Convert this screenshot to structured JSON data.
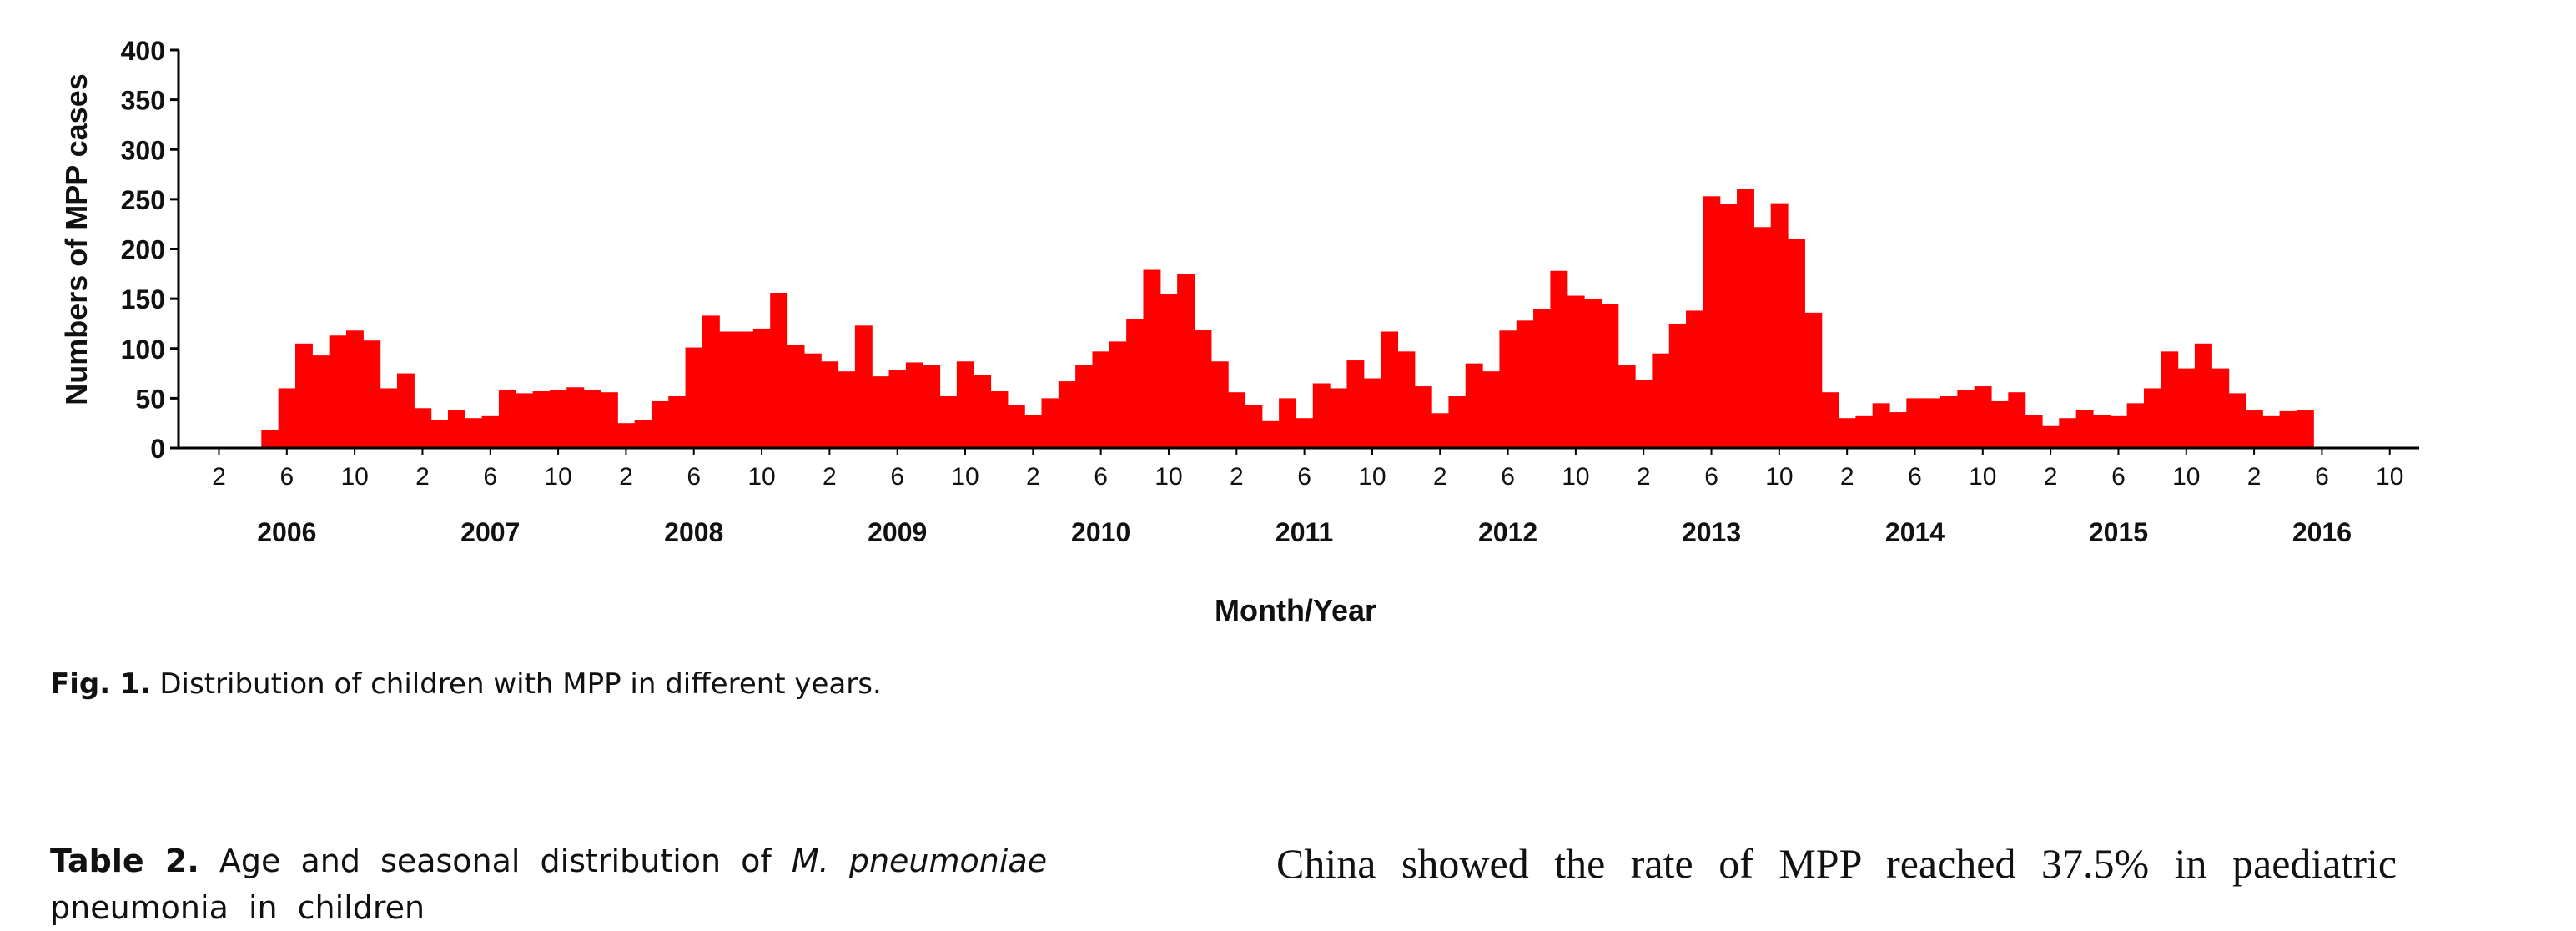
{
  "chart_data": {
    "type": "bar",
    "ylabel": "Numbers of MPP cases",
    "xlabel": "Month/Year",
    "ylim": [
      0,
      400
    ],
    "yticks": [
      0,
      50,
      100,
      150,
      200,
      250,
      300,
      350,
      400
    ],
    "month_tick_labels": [
      "2",
      "6",
      "10"
    ],
    "years": [
      "2006",
      "2007",
      "2008",
      "2009",
      "2010",
      "2011",
      "2012",
      "2013",
      "2014",
      "2015",
      "2016"
    ],
    "bar_color": "#ff0000",
    "start": "2006-01",
    "x_axis_months": [
      "2006-01",
      "2016-12"
    ],
    "values": [
      0,
      0,
      0,
      0,
      18,
      60,
      105,
      93,
      113,
      118,
      108,
      60,
      75,
      40,
      28,
      38,
      30,
      32,
      58,
      55,
      57,
      58,
      61,
      58,
      56,
      25,
      28,
      47,
      52,
      101,
      133,
      117,
      117,
      120,
      156,
      104,
      95,
      87,
      77,
      123,
      72,
      78,
      86,
      83,
      52,
      87,
      73,
      57,
      43,
      33,
      50,
      67,
      83,
      97,
      107,
      130,
      179,
      155,
      175,
      119,
      87,
      56,
      43,
      27,
      50,
      30,
      65,
      60,
      88,
      70,
      117,
      97,
      62,
      35,
      52,
      85,
      77,
      118,
      128,
      140,
      178,
      153,
      150,
      145,
      83,
      68,
      95,
      125,
      138,
      253,
      245,
      260,
      222,
      246,
      210,
      136,
      56,
      30,
      32,
      45,
      36,
      50,
      50,
      52,
      58,
      62,
      47,
      56,
      33,
      22,
      30,
      38,
      33,
      32,
      45,
      60,
      97,
      80,
      105,
      80,
      55,
      38,
      32,
      37,
      38,
      0,
      0,
      0,
      0,
      0,
      0,
      0
    ]
  },
  "caption": {
    "label": "Fig. 1.",
    "text": "Distribution of children with MPP in different years."
  },
  "table_title": {
    "label": "Table 2.",
    "text_before": "Age and seasonal distribution of",
    "italic": "M. pneumoniae",
    "text_after": "pneumonia in children"
  },
  "body_text": "China showed the rate of MPP reached 37.5% in paediatric"
}
